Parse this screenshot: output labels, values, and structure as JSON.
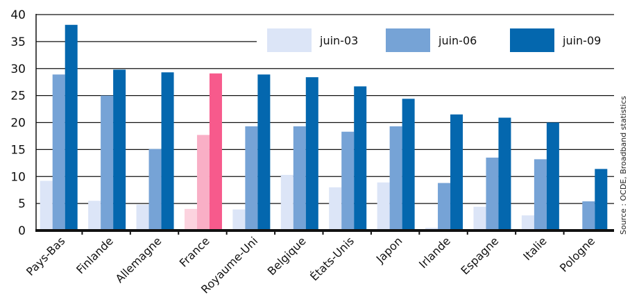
{
  "chart_data": {
    "type": "bar",
    "categories": [
      "Pays-Bas",
      "Finlande",
      "Allemagne",
      "France",
      "Royaume-Uni",
      "Belgique",
      "États-Unis",
      "Japon",
      "Irlande",
      "Espagne",
      "Italie",
      "Pologne"
    ],
    "series": [
      {
        "name": "juin-03",
        "color": "#dce5f7",
        "values": [
          9.2,
          5.5,
          4.8,
          4.0,
          3.9,
          10.3,
          8.0,
          8.9,
          0.5,
          4.4,
          2.8,
          0.2
        ]
      },
      {
        "name": "juin-06",
        "color": "#76a3d6",
        "values": [
          28.9,
          25.0,
          15.1,
          17.7,
          19.3,
          19.3,
          18.3,
          19.3,
          8.8,
          13.5,
          13.2,
          5.4
        ]
      },
      {
        "name": "juin-09",
        "color": "#0467ae",
        "values": [
          38.1,
          29.8,
          29.3,
          29.1,
          28.9,
          28.4,
          26.7,
          24.4,
          21.5,
          20.9,
          20.0,
          11.4
        ]
      }
    ],
    "highlight": {
      "category": "France",
      "colors": [
        "#fcd3df",
        "#f9afc6",
        "#f75a8c"
      ]
    },
    "ylim": [
      0,
      40
    ],
    "yticks": [
      "0",
      "5",
      "10",
      "15",
      "20",
      "25",
      "30",
      "35",
      "40"
    ],
    "grid": true,
    "legend": {
      "placement": "top-right",
      "entries": [
        "juin-03",
        "juin-06",
        "juin-09"
      ]
    },
    "source": "Source : OCDE, Broadband statistics"
  }
}
